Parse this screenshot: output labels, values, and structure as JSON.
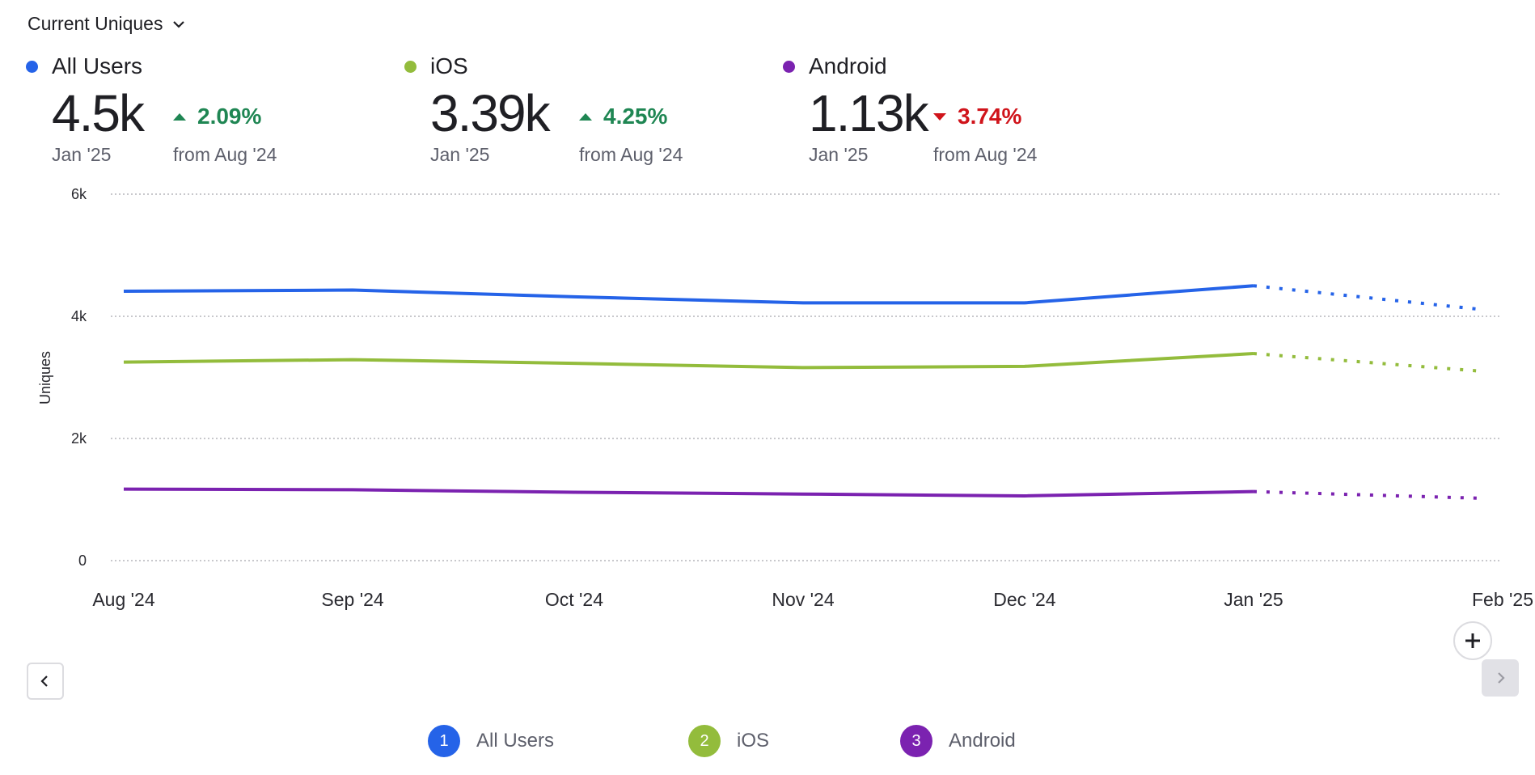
{
  "metric_selector": {
    "label": "Current Uniques",
    "icon": "chevron-down-icon"
  },
  "summaries": [
    {
      "name": "All Users",
      "color": "#2563e8",
      "value": "4.5k",
      "period": "Jan '25",
      "change": "2.09%",
      "direction": "up",
      "change_color": "#1f8653",
      "from": "from Aug '24"
    },
    {
      "name": "iOS",
      "color": "#93bc3c",
      "value": "3.39k",
      "period": "Jan '25",
      "change": "4.25%",
      "direction": "up",
      "change_color": "#1f8653",
      "from": "from Aug '24"
    },
    {
      "name": "Android",
      "color": "#7b22b0",
      "value": "1.13k",
      "period": "Jan '25",
      "change": "3.74%",
      "direction": "down",
      "change_color": "#d0141b",
      "from": "from Aug '24"
    }
  ],
  "controls": {
    "add_icon": "plus-icon",
    "prev_icon": "chevron-left-icon",
    "next_icon": "chevron-right-icon",
    "next_disabled": true
  },
  "legend": [
    {
      "index": "1",
      "label": "All Users",
      "color": "#2563e8"
    },
    {
      "index": "2",
      "label": "iOS",
      "color": "#93bc3c"
    },
    {
      "index": "3",
      "label": "Android",
      "color": "#7b22b0"
    }
  ],
  "chart_data": {
    "type": "line",
    "title": "",
    "xlabel": "",
    "ylabel": "Uniques",
    "ylim": [
      0,
      6000
    ],
    "yticks": [
      0,
      2000,
      4000,
      6000
    ],
    "ytick_labels": [
      "0",
      "2k",
      "4k",
      "6k"
    ],
    "grid": true,
    "categories": [
      "Aug '24",
      "Sep '24",
      "Oct '24",
      "Nov '24",
      "Dec '24",
      "Jan '25",
      "Feb '25"
    ],
    "x_days": [
      0,
      31,
      61,
      92,
      122,
      153,
      184
    ],
    "forecast_from_index": 5,
    "legend_position": "bottom",
    "series": [
      {
        "name": "All Users",
        "color": "#2563e8",
        "values": [
          4410,
          4430,
          4320,
          4220,
          4220,
          4500,
          4110
        ]
      },
      {
        "name": "iOS",
        "color": "#93bc3c",
        "values": [
          3250,
          3290,
          3230,
          3160,
          3180,
          3390,
          3100
        ]
      },
      {
        "name": "Android",
        "color": "#7b22b0",
        "values": [
          1170,
          1160,
          1120,
          1090,
          1060,
          1130,
          1020
        ]
      }
    ]
  }
}
